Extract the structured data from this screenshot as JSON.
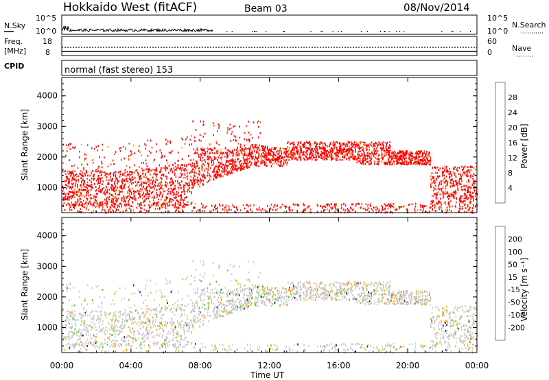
{
  "header": {
    "title": "Hokkaido West (fitACF)",
    "beam": "Beam 03",
    "date": "08/Nov/2014"
  },
  "noise_panel": {
    "left_label": "N.Sky",
    "right_label": "N.Search",
    "left_ticks": [
      "10^5",
      "10^0"
    ],
    "right_ticks": [
      "10^5",
      "10^0"
    ]
  },
  "freq_panel": {
    "left_label_1": "Freq.",
    "left_label_2": "[MHz]",
    "right_label": "Nave",
    "left_ticks": [
      "18",
      "8"
    ],
    "right_ticks": [
      "60",
      "0"
    ]
  },
  "cpid_panel": {
    "left_label": "CPID",
    "text": "normal (fast stereo) 153"
  },
  "chart_data": [
    {
      "type": "heatmap",
      "name": "power",
      "xlabel": "",
      "ylabel": "Slant Range [km]",
      "xlim": [
        0,
        24
      ],
      "ylim": [
        180,
        4600
      ],
      "y_ticks": [
        "1000",
        "2000",
        "3000",
        "4000"
      ],
      "colorbar": {
        "label": "Power [dB]",
        "range": [
          0,
          30
        ],
        "tick_labels": [
          "4",
          "8",
          "12",
          "16",
          "20",
          "24",
          "28"
        ],
        "colors": [
          "#0000ff",
          "#2a52b8",
          "#2f7a50",
          "#5ab848",
          "#f0d000",
          "#ffa000",
          "#ff6600",
          "#ff0000"
        ]
      },
      "dominant_value_db": 30
    },
    {
      "type": "heatmap",
      "name": "velocity",
      "xlabel": "Time UT",
      "ylabel": "Slant Range [km]",
      "xlim": [
        0,
        24
      ],
      "ylim": [
        180,
        4600
      ],
      "x_ticks": [
        "00:00",
        "04:00",
        "08:00",
        "12:00",
        "16:00",
        "20:00",
        "00:00"
      ],
      "y_ticks": [
        "1000",
        "2000",
        "3000",
        "4000"
      ],
      "colorbar": {
        "label": "Velocity [m s⁻¹]",
        "range": [
          -250,
          250
        ],
        "tick_labels": [
          "200",
          "100",
          "50",
          "15",
          "-15",
          "-50",
          "-100",
          "-200"
        ],
        "colors": [
          "#1c1ca8",
          "#2e6ab8",
          "#2f8a50",
          "#58c83a",
          "#c8c8c8",
          "#f2b600",
          "#ff7800",
          "#ff3c00",
          "#ff0000"
        ]
      },
      "dominant_value_ms": 0
    }
  ],
  "colors": {
    "scatter_red": "#ff0000",
    "ground_grey": "#c8c8c8"
  }
}
